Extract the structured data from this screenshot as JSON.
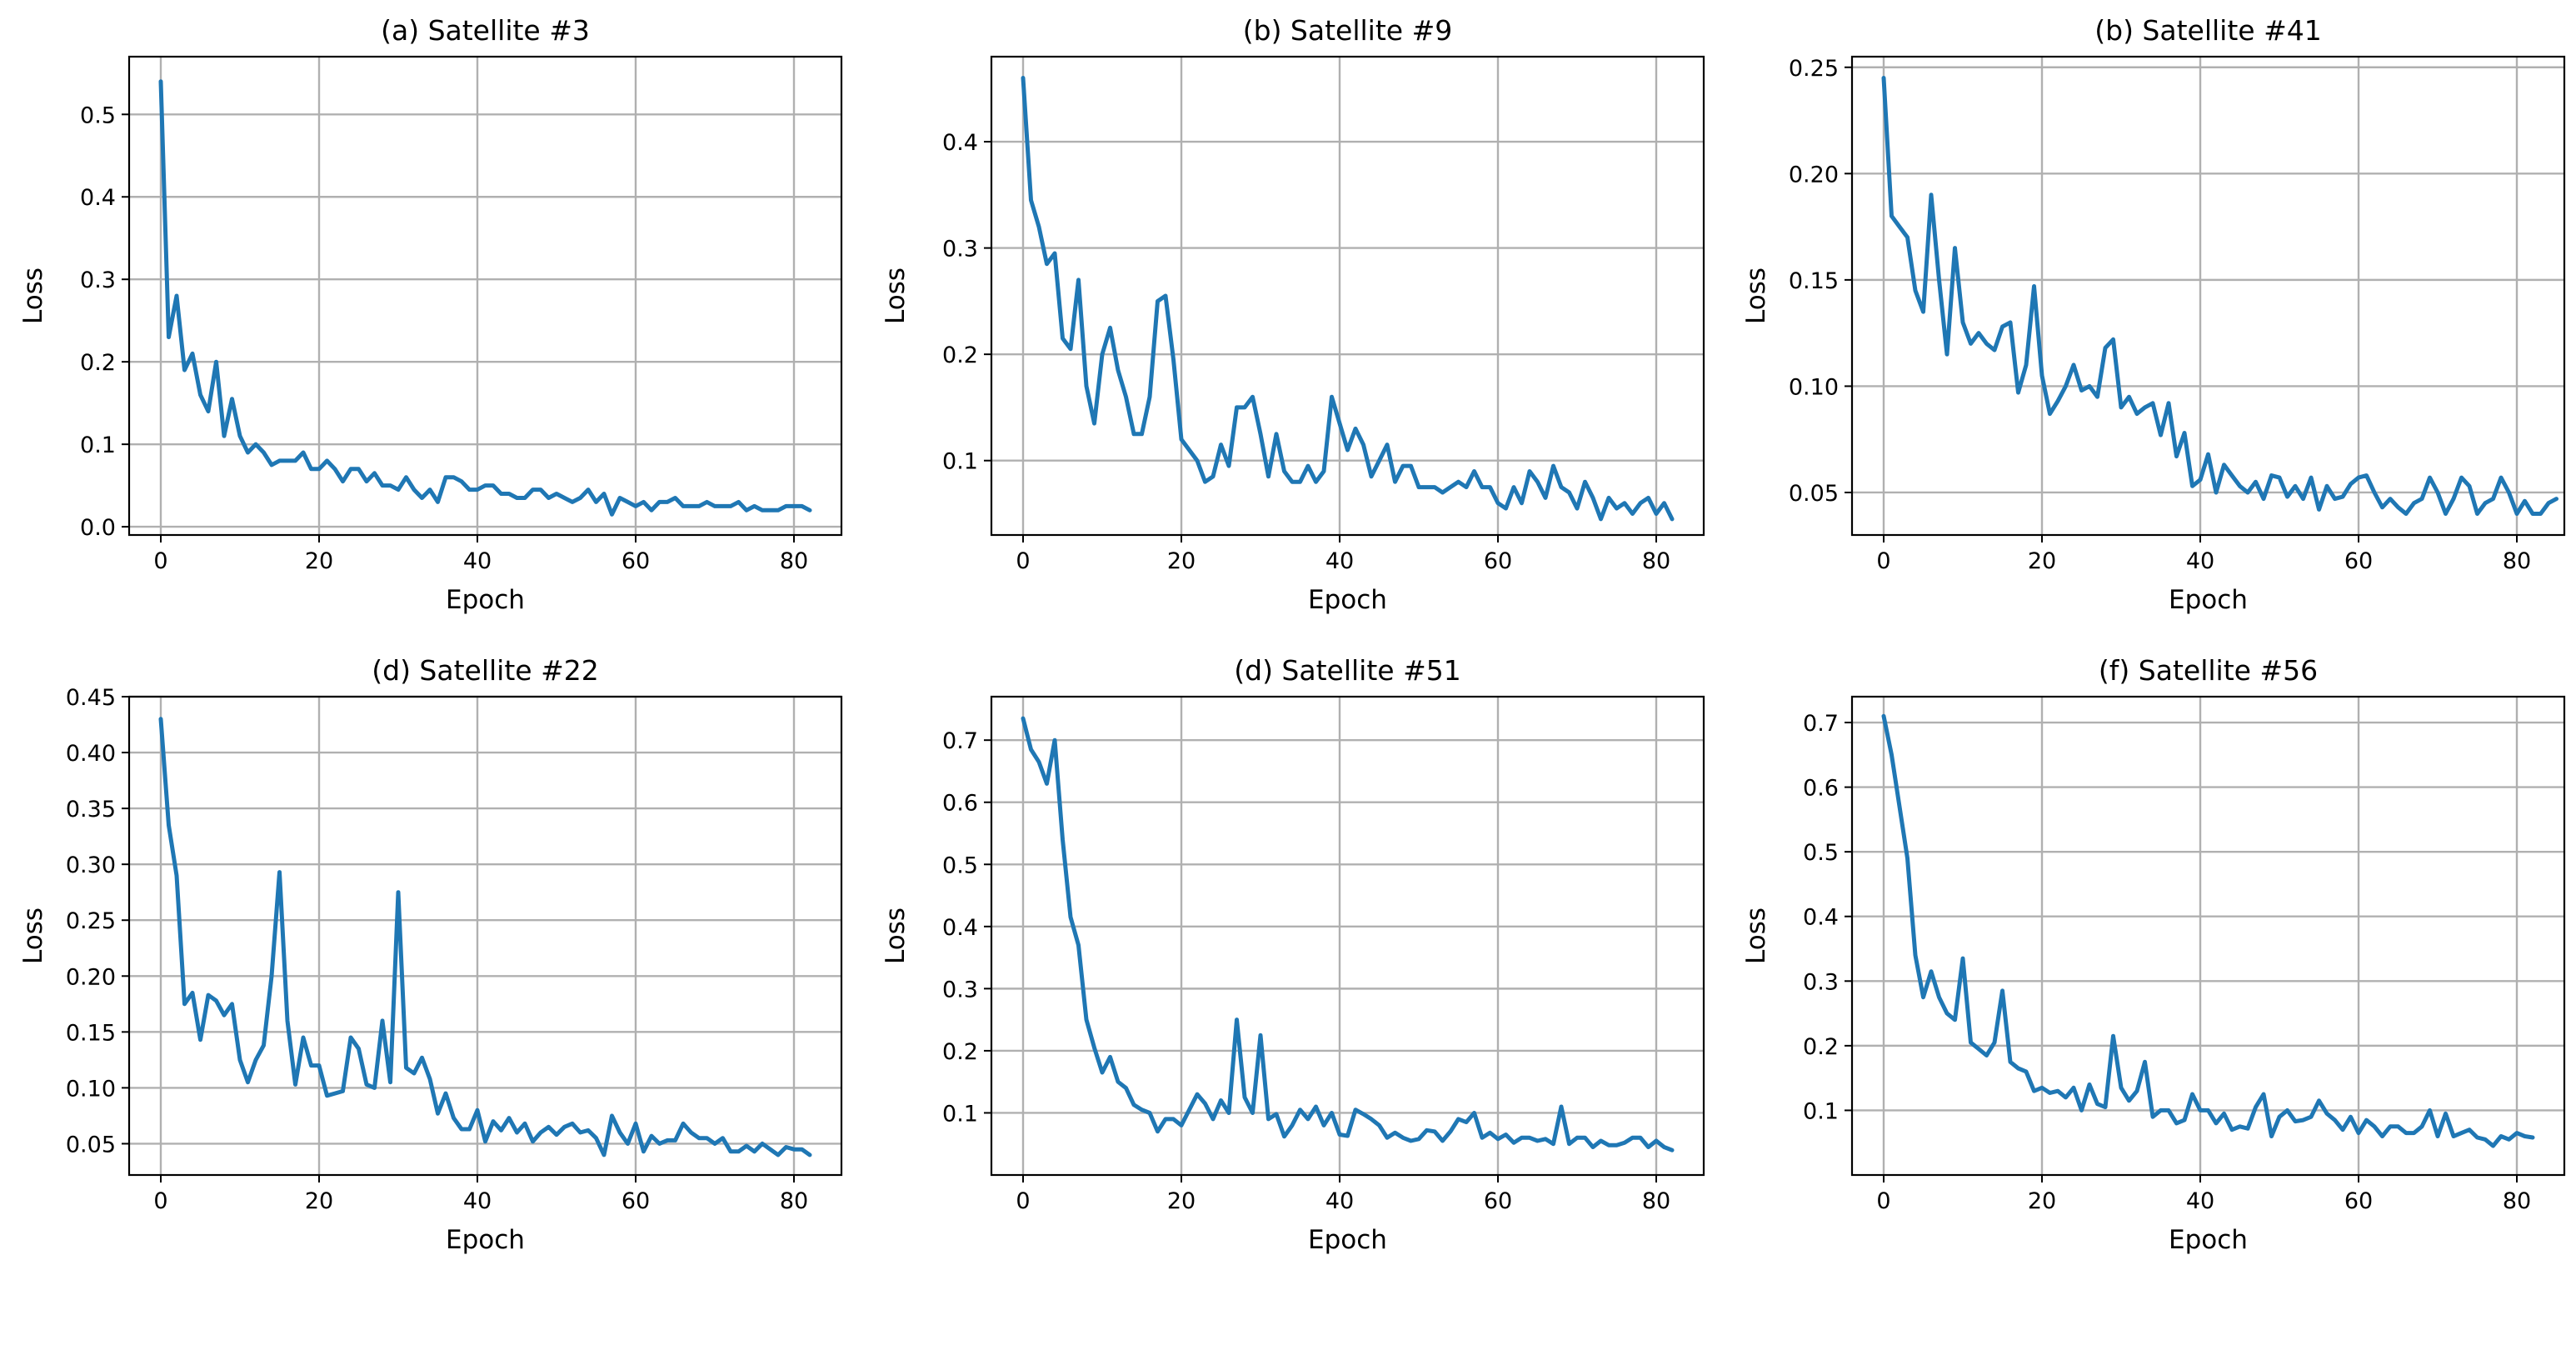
{
  "style": {
    "line_color": "#1f77b4",
    "grid_color": "#b0b0b0",
    "grid": true
  },
  "chart_data": [
    {
      "type": "line",
      "title": "(a) Satellite #3",
      "xlabel": "Epoch",
      "ylabel": "Loss",
      "xlim": [
        -4,
        86
      ],
      "ylim": [
        -0.01,
        0.57
      ],
      "xticks": [
        0,
        20,
        40,
        60,
        80
      ],
      "yticks": [
        0.0,
        0.1,
        0.2,
        0.3,
        0.4,
        0.5
      ],
      "ytick_labels": [
        "0.0",
        "0.1",
        "0.2",
        "0.3",
        "0.4",
        "0.5"
      ],
      "x": [
        0,
        1,
        2,
        3,
        4,
        5,
        6,
        7,
        8,
        9,
        10,
        11,
        12,
        13,
        14,
        15,
        16,
        17,
        18,
        19,
        20,
        21,
        22,
        23,
        24,
        25,
        26,
        27,
        28,
        29,
        30,
        31,
        32,
        33,
        34,
        35,
        36,
        37,
        38,
        39,
        40,
        41,
        42,
        43,
        44,
        45,
        46,
        47,
        48,
        49,
        50,
        51,
        52,
        53,
        54,
        55,
        56,
        57,
        58,
        59,
        60,
        61,
        62,
        63,
        64,
        65,
        66,
        67,
        68,
        69,
        70,
        71,
        72,
        73,
        74,
        75,
        76,
        77,
        78,
        79,
        80,
        81,
        82
      ],
      "y": [
        0.54,
        0.23,
        0.28,
        0.19,
        0.21,
        0.16,
        0.14,
        0.2,
        0.11,
        0.155,
        0.11,
        0.09,
        0.1,
        0.09,
        0.075,
        0.08,
        0.08,
        0.08,
        0.09,
        0.07,
        0.07,
        0.08,
        0.07,
        0.055,
        0.07,
        0.07,
        0.055,
        0.065,
        0.05,
        0.05,
        0.045,
        0.06,
        0.045,
        0.035,
        0.045,
        0.03,
        0.06,
        0.06,
        0.055,
        0.045,
        0.045,
        0.05,
        0.05,
        0.04,
        0.04,
        0.035,
        0.035,
        0.045,
        0.045,
        0.035,
        0.04,
        0.035,
        0.03,
        0.035,
        0.045,
        0.03,
        0.04,
        0.015,
        0.035,
        0.03,
        0.025,
        0.03,
        0.02,
        0.03,
        0.03,
        0.035,
        0.025,
        0.025,
        0.025,
        0.03,
        0.025,
        0.025,
        0.025,
        0.03,
        0.02,
        0.025,
        0.02,
        0.02,
        0.02,
        0.025,
        0.025,
        0.025,
        0.02
      ]
    },
    {
      "type": "line",
      "title": "(b) Satellite #9",
      "xlabel": "Epoch",
      "ylabel": "Loss",
      "xlim": [
        -4,
        86
      ],
      "ylim": [
        0.03,
        0.48
      ],
      "xticks": [
        0,
        20,
        40,
        60,
        80
      ],
      "yticks": [
        0.1,
        0.2,
        0.3,
        0.4
      ],
      "ytick_labels": [
        "0.1",
        "0.2",
        "0.3",
        "0.4"
      ],
      "x": [
        0,
        1,
        2,
        3,
        4,
        5,
        6,
        7,
        8,
        9,
        10,
        11,
        12,
        13,
        14,
        15,
        16,
        17,
        18,
        19,
        20,
        21,
        22,
        23,
        24,
        25,
        26,
        27,
        28,
        29,
        30,
        31,
        32,
        33,
        34,
        35,
        36,
        37,
        38,
        39,
        40,
        41,
        42,
        43,
        44,
        45,
        46,
        47,
        48,
        49,
        50,
        51,
        52,
        53,
        54,
        55,
        56,
        57,
        58,
        59,
        60,
        61,
        62,
        63,
        64,
        65,
        66,
        67,
        68,
        69,
        70,
        71,
        72,
        73,
        74,
        75,
        76,
        77,
        78,
        79,
        80,
        81,
        82
      ],
      "y": [
        0.46,
        0.345,
        0.32,
        0.285,
        0.295,
        0.215,
        0.205,
        0.27,
        0.17,
        0.135,
        0.2,
        0.225,
        0.185,
        0.16,
        0.125,
        0.125,
        0.16,
        0.25,
        0.255,
        0.195,
        0.12,
        0.11,
        0.1,
        0.08,
        0.085,
        0.115,
        0.095,
        0.15,
        0.15,
        0.16,
        0.125,
        0.085,
        0.125,
        0.09,
        0.08,
        0.08,
        0.095,
        0.08,
        0.09,
        0.16,
        0.135,
        0.11,
        0.13,
        0.115,
        0.085,
        0.1,
        0.115,
        0.08,
        0.095,
        0.095,
        0.075,
        0.075,
        0.075,
        0.07,
        0.075,
        0.08,
        0.075,
        0.09,
        0.075,
        0.075,
        0.06,
        0.055,
        0.075,
        0.06,
        0.09,
        0.08,
        0.065,
        0.095,
        0.075,
        0.07,
        0.055,
        0.08,
        0.065,
        0.045,
        0.065,
        0.055,
        0.06,
        0.05,
        0.06,
        0.065,
        0.05,
        0.06,
        0.045
      ]
    },
    {
      "type": "line",
      "title": "(b) Satellite #41",
      "xlabel": "Epoch",
      "ylabel": "Loss",
      "xlim": [
        -4,
        86
      ],
      "ylim": [
        0.03,
        0.255
      ],
      "xticks": [
        0,
        20,
        40,
        60,
        80
      ],
      "yticks": [
        0.05,
        0.1,
        0.15,
        0.2,
        0.25
      ],
      "ytick_labels": [
        "0.05",
        "0.10",
        "0.15",
        "0.20",
        "0.25"
      ],
      "x": [
        0,
        1,
        2,
        3,
        4,
        5,
        6,
        7,
        8,
        9,
        10,
        11,
        12,
        13,
        14,
        15,
        16,
        17,
        18,
        19,
        20,
        21,
        22,
        23,
        24,
        25,
        26,
        27,
        28,
        29,
        30,
        31,
        32,
        33,
        34,
        35,
        36,
        37,
        38,
        39,
        40,
        41,
        42,
        43,
        44,
        45,
        46,
        47,
        48,
        49,
        50,
        51,
        52,
        53,
        54,
        55,
        56,
        57,
        58,
        59,
        60,
        61,
        62,
        63,
        64,
        65,
        66,
        67,
        68,
        69,
        70,
        71,
        72,
        73,
        74,
        75,
        76,
        77,
        78,
        79,
        80,
        81,
        82,
        83,
        84,
        85
      ],
      "y": [
        0.245,
        0.18,
        0.175,
        0.17,
        0.145,
        0.135,
        0.19,
        0.15,
        0.115,
        0.165,
        0.13,
        0.12,
        0.125,
        0.12,
        0.117,
        0.128,
        0.13,
        0.097,
        0.11,
        0.147,
        0.105,
        0.087,
        0.093,
        0.1,
        0.11,
        0.098,
        0.1,
        0.095,
        0.118,
        0.122,
        0.09,
        0.095,
        0.087,
        0.09,
        0.092,
        0.077,
        0.092,
        0.067,
        0.078,
        0.053,
        0.056,
        0.068,
        0.05,
        0.063,
        0.058,
        0.053,
        0.05,
        0.055,
        0.047,
        0.058,
        0.057,
        0.048,
        0.053,
        0.047,
        0.057,
        0.042,
        0.053,
        0.047,
        0.048,
        0.054,
        0.057,
        0.058,
        0.05,
        0.043,
        0.047,
        0.043,
        0.04,
        0.045,
        0.047,
        0.057,
        0.05,
        0.04,
        0.047,
        0.057,
        0.053,
        0.04,
        0.045,
        0.047,
        0.057,
        0.05,
        0.04,
        0.046,
        0.04,
        0.04,
        0.045,
        0.047
      ]
    },
    {
      "type": "line",
      "title": "(d) Satellite #22",
      "xlabel": "Epoch",
      "ylabel": "Loss",
      "xlim": [
        -4,
        86
      ],
      "ylim": [
        0.022,
        0.45
      ],
      "xticks": [
        0,
        20,
        40,
        60,
        80
      ],
      "yticks": [
        0.05,
        0.1,
        0.15,
        0.2,
        0.25,
        0.3,
        0.35,
        0.4,
        0.45
      ],
      "ytick_labels": [
        "0.05",
        "0.10",
        "0.15",
        "0.20",
        "0.25",
        "0.30",
        "0.35",
        "0.40",
        "0.45"
      ],
      "x": [
        0,
        1,
        2,
        3,
        4,
        5,
        6,
        7,
        8,
        9,
        10,
        11,
        12,
        13,
        14,
        15,
        16,
        17,
        18,
        19,
        20,
        21,
        22,
        23,
        24,
        25,
        26,
        27,
        28,
        29,
        30,
        31,
        32,
        33,
        34,
        35,
        36,
        37,
        38,
        39,
        40,
        41,
        42,
        43,
        44,
        45,
        46,
        47,
        48,
        49,
        50,
        51,
        52,
        53,
        54,
        55,
        56,
        57,
        58,
        59,
        60,
        61,
        62,
        63,
        64,
        65,
        66,
        67,
        68,
        69,
        70,
        71,
        72,
        73,
        74,
        75,
        76,
        77,
        78,
        79,
        80,
        81,
        82
      ],
      "y": [
        0.43,
        0.335,
        0.29,
        0.175,
        0.185,
        0.143,
        0.183,
        0.178,
        0.165,
        0.175,
        0.125,
        0.105,
        0.125,
        0.138,
        0.2,
        0.293,
        0.16,
        0.103,
        0.145,
        0.12,
        0.12,
        0.093,
        0.095,
        0.097,
        0.145,
        0.135,
        0.103,
        0.1,
        0.16,
        0.105,
        0.275,
        0.118,
        0.113,
        0.127,
        0.108,
        0.077,
        0.095,
        0.073,
        0.063,
        0.063,
        0.08,
        0.052,
        0.07,
        0.062,
        0.073,
        0.06,
        0.068,
        0.052,
        0.06,
        0.065,
        0.058,
        0.065,
        0.068,
        0.06,
        0.062,
        0.055,
        0.04,
        0.075,
        0.06,
        0.05,
        0.068,
        0.043,
        0.057,
        0.05,
        0.053,
        0.053,
        0.068,
        0.06,
        0.055,
        0.055,
        0.05,
        0.055,
        0.043,
        0.043,
        0.048,
        0.043,
        0.05,
        0.045,
        0.04,
        0.047,
        0.045,
        0.045,
        0.04
      ]
    },
    {
      "type": "line",
      "title": "(d) Satellite #51",
      "xlabel": "Epoch",
      "ylabel": "Loss",
      "xlim": [
        -4,
        86
      ],
      "ylim": [
        0.0,
        0.77
      ],
      "xticks": [
        0,
        20,
        40,
        60,
        80
      ],
      "yticks": [
        0.1,
        0.2,
        0.3,
        0.4,
        0.5,
        0.6,
        0.7
      ],
      "ytick_labels": [
        "0.1",
        "0.2",
        "0.3",
        "0.4",
        "0.5",
        "0.6",
        "0.7"
      ],
      "x": [
        0,
        1,
        2,
        3,
        4,
        5,
        6,
        7,
        8,
        9,
        10,
        11,
        12,
        13,
        14,
        15,
        16,
        17,
        18,
        19,
        20,
        21,
        22,
        23,
        24,
        25,
        26,
        27,
        28,
        29,
        30,
        31,
        32,
        33,
        34,
        35,
        36,
        37,
        38,
        39,
        40,
        41,
        42,
        43,
        44,
        45,
        46,
        47,
        48,
        49,
        50,
        51,
        52,
        53,
        54,
        55,
        56,
        57,
        58,
        59,
        60,
        61,
        62,
        63,
        64,
        65,
        66,
        67,
        68,
        69,
        70,
        71,
        72,
        73,
        74,
        75,
        76,
        77,
        78,
        79,
        80,
        81,
        82
      ],
      "y": [
        0.735,
        0.685,
        0.665,
        0.63,
        0.7,
        0.54,
        0.415,
        0.37,
        0.25,
        0.205,
        0.165,
        0.19,
        0.15,
        0.14,
        0.113,
        0.105,
        0.1,
        0.07,
        0.09,
        0.09,
        0.08,
        0.105,
        0.13,
        0.115,
        0.09,
        0.12,
        0.1,
        0.25,
        0.125,
        0.1,
        0.225,
        0.09,
        0.098,
        0.062,
        0.08,
        0.105,
        0.09,
        0.11,
        0.08,
        0.1,
        0.065,
        0.063,
        0.105,
        0.098,
        0.09,
        0.08,
        0.06,
        0.068,
        0.06,
        0.055,
        0.058,
        0.072,
        0.07,
        0.055,
        0.07,
        0.09,
        0.085,
        0.1,
        0.06,
        0.068,
        0.058,
        0.065,
        0.052,
        0.06,
        0.06,
        0.055,
        0.058,
        0.05,
        0.11,
        0.05,
        0.06,
        0.06,
        0.045,
        0.055,
        0.048,
        0.048,
        0.052,
        0.06,
        0.06,
        0.045,
        0.055,
        0.045,
        0.04
      ]
    },
    {
      "type": "line",
      "title": "(f) Satellite #56",
      "xlabel": "Epoch",
      "ylabel": "Loss",
      "xlim": [
        -4,
        86
      ],
      "ylim": [
        0.0,
        0.74
      ],
      "xticks": [
        0,
        20,
        40,
        60,
        80
      ],
      "yticks": [
        0.1,
        0.2,
        0.3,
        0.4,
        0.5,
        0.6,
        0.7
      ],
      "ytick_labels": [
        "0.1",
        "0.2",
        "0.3",
        "0.4",
        "0.5",
        "0.6",
        "0.7"
      ],
      "x": [
        0,
        1,
        2,
        3,
        4,
        5,
        6,
        7,
        8,
        9,
        10,
        11,
        12,
        13,
        14,
        15,
        16,
        17,
        18,
        19,
        20,
        21,
        22,
        23,
        24,
        25,
        26,
        27,
        28,
        29,
        30,
        31,
        32,
        33,
        34,
        35,
        36,
        37,
        38,
        39,
        40,
        41,
        42,
        43,
        44,
        45,
        46,
        47,
        48,
        49,
        50,
        51,
        52,
        53,
        54,
        55,
        56,
        57,
        58,
        59,
        60,
        61,
        62,
        63,
        64,
        65,
        66,
        67,
        68,
        69,
        70,
        71,
        72,
        73,
        74,
        75,
        76,
        77,
        78,
        79,
        80,
        81,
        82
      ],
      "y": [
        0.71,
        0.65,
        0.57,
        0.49,
        0.34,
        0.275,
        0.315,
        0.275,
        0.25,
        0.24,
        0.335,
        0.205,
        0.195,
        0.185,
        0.205,
        0.285,
        0.175,
        0.165,
        0.16,
        0.13,
        0.135,
        0.127,
        0.13,
        0.12,
        0.135,
        0.1,
        0.14,
        0.11,
        0.105,
        0.215,
        0.135,
        0.115,
        0.13,
        0.175,
        0.09,
        0.1,
        0.1,
        0.08,
        0.085,
        0.125,
        0.1,
        0.1,
        0.08,
        0.095,
        0.07,
        0.075,
        0.072,
        0.105,
        0.125,
        0.06,
        0.09,
        0.1,
        0.083,
        0.085,
        0.09,
        0.115,
        0.095,
        0.085,
        0.07,
        0.09,
        0.065,
        0.085,
        0.075,
        0.06,
        0.075,
        0.075,
        0.065,
        0.065,
        0.075,
        0.1,
        0.06,
        0.095,
        0.06,
        0.065,
        0.07,
        0.058,
        0.055,
        0.045,
        0.06,
        0.055,
        0.065,
        0.06,
        0.058
      ]
    }
  ]
}
